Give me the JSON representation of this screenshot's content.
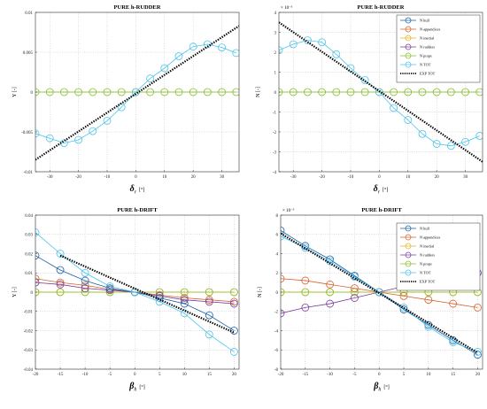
{
  "chart_data": [
    {
      "type": "line",
      "title": "PURE h-RUDDER",
      "ylabel": "Y [-]",
      "xlabel_symbol": "δ",
      "xlabel_sub": "r",
      "xlabel_unit": "[°]",
      "xlim": [
        -35,
        36
      ],
      "ylim": [
        -0.01,
        0.01
      ],
      "xticks": [
        -30,
        -20,
        -10,
        0,
        10,
        20,
        30
      ],
      "xtick_labels": [
        "-30",
        "-20",
        "-10",
        "0",
        "10",
        "20",
        "30"
      ],
      "yticks": [
        -0.01,
        -0.005,
        0,
        0.005,
        0.01
      ],
      "ytick_labels": [
        "-0.01",
        "-0.005",
        "0",
        "0.005",
        "0.01"
      ],
      "exponent": "",
      "grid": true,
      "legend": [],
      "series": [
        {
          "color": "#c0c0c0",
          "marker": "none",
          "style": "solid",
          "x": [
            -35,
            36
          ],
          "y": [
            0,
            0
          ]
        },
        {
          "color": "#88bf2c",
          "marker": "circle",
          "style": "solid",
          "x": [
            -35,
            -30,
            -25,
            -20,
            -15,
            -10,
            -5,
            0,
            5,
            10,
            15,
            20,
            25,
            30,
            35
          ],
          "y": [
            0,
            0,
            0,
            0,
            0,
            0,
            0,
            0,
            0,
            0,
            0,
            0,
            0,
            0,
            0
          ]
        },
        {
          "color": "#4cc3ea",
          "marker": "circle",
          "style": "solid",
          "x": [
            -35,
            -30,
            -25,
            -20,
            -15,
            -10,
            -5,
            0,
            5,
            10,
            15,
            20,
            25,
            30,
            35
          ],
          "y": [
            -0.0052,
            -0.0058,
            -0.0064,
            -0.006,
            -0.0049,
            -0.0036,
            -0.0019,
            0,
            0.0017,
            0.003,
            0.0045,
            0.0057,
            0.006,
            0.0056,
            0.0049
          ]
        },
        {
          "color": "#000000",
          "marker": "none",
          "style": "dotted",
          "x": [
            -35,
            36
          ],
          "y": [
            -0.0085,
            0.0083
          ]
        }
      ]
    },
    {
      "type": "line",
      "title": "PURE h-RUDDER",
      "ylabel": "N [-]",
      "xlabel_symbol": "δ",
      "xlabel_sub": "r",
      "xlabel_unit": "[°]",
      "xlim": [
        -35,
        36
      ],
      "ylim": [
        -4,
        4
      ],
      "xticks": [
        -30,
        -20,
        -10,
        0,
        10,
        20,
        30
      ],
      "xtick_labels": [
        "-30",
        "-20",
        "-10",
        "0",
        "10",
        "20",
        "30"
      ],
      "yticks": [
        -4,
        -3,
        -2,
        -1,
        0,
        1,
        2,
        3,
        4
      ],
      "ytick_labels": [
        "-4",
        "-3",
        "-2",
        "-1",
        "0",
        "1",
        "2",
        "3",
        "4"
      ],
      "exponent": "× 10⁻³",
      "grid": true,
      "legend": [
        {
          "label": "N hull",
          "color": "#1a5fa8",
          "marker": "circle",
          "style": "solid"
        },
        {
          "label": "N appendices",
          "color": "#d95f2a",
          "marker": "circle",
          "style": "solid"
        },
        {
          "label": "N inertial",
          "color": "#e8b21a",
          "marker": "circle",
          "style": "solid"
        },
        {
          "label": "N rudders",
          "color": "#7a3a9a",
          "marker": "circle",
          "style": "solid"
        },
        {
          "label": "N props",
          "color": "#88bf2c",
          "marker": "circle",
          "style": "solid"
        },
        {
          "label": "N TOT",
          "color": "#4cc3ea",
          "marker": "circle",
          "style": "solid"
        },
        {
          "label": "EXP TOT",
          "color": "#000000",
          "marker": "none",
          "style": "dotted"
        }
      ],
      "series": [
        {
          "color": "#c0c0c0",
          "marker": "none",
          "style": "solid",
          "x": [
            -35,
            36
          ],
          "y": [
            0,
            0
          ]
        },
        {
          "color": "#88bf2c",
          "marker": "circle",
          "style": "solid",
          "x": [
            -35,
            -30,
            -25,
            -20,
            -15,
            -10,
            -5,
            0,
            5,
            10,
            15,
            20,
            25,
            30,
            35
          ],
          "y": [
            0,
            0,
            0,
            0,
            0,
            0,
            0,
            0,
            0,
            0,
            0,
            0,
            0,
            0,
            0
          ]
        },
        {
          "color": "#4cc3ea",
          "marker": "circle",
          "style": "solid",
          "x": [
            -35,
            -30,
            -25,
            -20,
            -15,
            -10,
            -5,
            0,
            5,
            10,
            15,
            20,
            25,
            30,
            35
          ],
          "y": [
            2.1,
            2.4,
            2.6,
            2.5,
            1.9,
            1.2,
            0.6,
            0,
            -0.8,
            -1.4,
            -2.1,
            -2.6,
            -2.7,
            -2.5,
            -2.2
          ]
        },
        {
          "color": "#000000",
          "marker": "none",
          "style": "dotted",
          "x": [
            -35,
            36
          ],
          "y": [
            3.5,
            -3.5
          ]
        }
      ]
    },
    {
      "type": "line",
      "title": "PURE h-DRIFT",
      "ylabel": "Y [-]",
      "xlabel_symbol": "β",
      "xlabel_sub": "h",
      "xlabel_unit": "[°]",
      "xlim": [
        -20,
        21
      ],
      "ylim": [
        -0.04,
        0.04
      ],
      "xticks": [
        -20,
        -15,
        -10,
        -5,
        0,
        5,
        10,
        15,
        20
      ],
      "xtick_labels": [
        "-20",
        "-15",
        "-10",
        "-5",
        "0",
        "5",
        "10",
        "15",
        "20"
      ],
      "yticks": [
        -0.04,
        -0.03,
        -0.02,
        -0.01,
        0,
        0.01,
        0.02,
        0.03,
        0.04
      ],
      "ytick_labels": [
        "-0.04",
        "-0.03",
        "-0.02",
        "-0.01",
        "0",
        "0.01",
        "0.02",
        "0.03",
        "0.04"
      ],
      "exponent": "",
      "grid": true,
      "legend": [],
      "series": [
        {
          "color": "#e8b21a",
          "marker": "circle",
          "style": "solid",
          "x": [
            -20,
            -15,
            -10,
            -5,
            0,
            5,
            10,
            15,
            20
          ],
          "y": [
            0,
            0,
            0,
            0,
            0,
            0,
            0,
            0,
            0
          ]
        },
        {
          "color": "#88bf2c",
          "marker": "circle",
          "style": "solid",
          "x": [
            -20,
            -15,
            -10,
            -5,
            0,
            5,
            10,
            15,
            20
          ],
          "y": [
            0,
            0,
            0,
            0,
            0,
            0,
            0,
            0,
            0
          ]
        },
        {
          "color": "#d95f2a",
          "marker": "circle",
          "style": "solid",
          "x": [
            -20,
            -15,
            -10,
            -5,
            0,
            5,
            10,
            15,
            20
          ],
          "y": [
            0.007,
            0.005,
            0.0035,
            0.0015,
            0,
            -0.0015,
            -0.003,
            -0.004,
            -0.005
          ]
        },
        {
          "color": "#7a3a9a",
          "marker": "circle",
          "style": "solid",
          "x": [
            -20,
            -15,
            -10,
            -5,
            0,
            5,
            10,
            15,
            20
          ],
          "y": [
            0.005,
            0.004,
            0.002,
            0.001,
            0,
            -0.002,
            -0.004,
            -0.005,
            -0.006
          ]
        },
        {
          "color": "#1a5fa8",
          "marker": "circle",
          "style": "solid",
          "x": [
            -20,
            -15,
            -10,
            -5,
            0,
            5,
            10,
            15,
            20
          ],
          "y": [
            0.019,
            0.0115,
            0.006,
            0.002,
            0,
            -0.003,
            -0.006,
            -0.012,
            -0.02
          ]
        },
        {
          "color": "#4cc3ea",
          "marker": "circle",
          "style": "solid",
          "x": [
            -20,
            -15,
            -10,
            -5,
            0,
            5,
            10,
            15,
            20
          ],
          "y": [
            0.031,
            0.02,
            0.01,
            0.003,
            0,
            -0.005,
            -0.011,
            -0.022,
            -0.031
          ]
        },
        {
          "color": "#000000",
          "marker": "none",
          "style": "dotted",
          "x": [
            -15,
            20
          ],
          "y": [
            0.019,
            -0.021
          ]
        }
      ]
    },
    {
      "type": "line",
      "title": "PURE h-DRIFT",
      "ylabel": "N [-]",
      "xlabel_symbol": "β",
      "xlabel_sub": "h",
      "xlabel_unit": "[°]",
      "xlim": [
        -20,
        21
      ],
      "ylim": [
        -8,
        8
      ],
      "xticks": [
        -20,
        -15,
        -10,
        -5,
        0,
        5,
        10,
        15,
        20
      ],
      "xtick_labels": [
        "-20",
        "-15",
        "-10",
        "-5",
        "0",
        "5",
        "10",
        "15",
        "20"
      ],
      "yticks": [
        -8,
        -6,
        -4,
        -2,
        0,
        2,
        4,
        6,
        8
      ],
      "ytick_labels": [
        "-8",
        "-6",
        "-4",
        "-2",
        "0",
        "2",
        "4",
        "6",
        "8"
      ],
      "exponent": "× 10⁻³",
      "grid": true,
      "legend": [
        {
          "label": "N hull",
          "color": "#1a5fa8",
          "marker": "circle",
          "style": "solid"
        },
        {
          "label": "N appendices",
          "color": "#d95f2a",
          "marker": "circle",
          "style": "solid"
        },
        {
          "label": "N inertial",
          "color": "#e8b21a",
          "marker": "circle",
          "style": "solid"
        },
        {
          "label": "N rudders",
          "color": "#7a3a9a",
          "marker": "circle",
          "style": "solid"
        },
        {
          "label": "N props",
          "color": "#88bf2c",
          "marker": "circle",
          "style": "solid"
        },
        {
          "label": "N TOT",
          "color": "#4cc3ea",
          "marker": "circle",
          "style": "solid"
        },
        {
          "label": "EXP TOT",
          "color": "#000000",
          "marker": "none",
          "style": "dotted"
        }
      ],
      "series": [
        {
          "color": "#e8b21a",
          "marker": "circle",
          "style": "solid",
          "x": [
            -20,
            -15,
            -10,
            -5,
            0,
            5,
            10,
            15,
            20
          ],
          "y": [
            0,
            0,
            0,
            0,
            0,
            0,
            0,
            0,
            0
          ]
        },
        {
          "color": "#88bf2c",
          "marker": "circle",
          "style": "solid",
          "x": [
            -20,
            -15,
            -10,
            -5,
            0,
            5,
            10,
            15,
            20
          ],
          "y": [
            0,
            0,
            0,
            0,
            0,
            0,
            0,
            0,
            0
          ]
        },
        {
          "color": "#d95f2a",
          "marker": "circle",
          "style": "solid",
          "x": [
            -20,
            -15,
            -10,
            -5,
            0,
            5,
            10,
            15,
            20
          ],
          "y": [
            1.4,
            1.2,
            0.8,
            0.4,
            0,
            -0.4,
            -0.8,
            -1.2,
            -1.6
          ]
        },
        {
          "color": "#7a3a9a",
          "marker": "circle",
          "style": "solid",
          "x": [
            -20,
            -15,
            -10,
            -5,
            0,
            5,
            10,
            15,
            20
          ],
          "y": [
            -2.2,
            -1.6,
            -1.2,
            -0.6,
            0,
            0.6,
            1.0,
            1.5,
            2.0
          ]
        },
        {
          "color": "#1a5fa8",
          "marker": "circle",
          "style": "solid",
          "x": [
            -20,
            -15,
            -10,
            -5,
            0,
            5,
            10,
            15,
            20
          ],
          "y": [
            6.4,
            4.8,
            3.4,
            1.7,
            0,
            -1.8,
            -3.4,
            -5.0,
            -6.5
          ]
        },
        {
          "color": "#4cc3ea",
          "marker": "circle",
          "style": "solid",
          "x": [
            -20,
            -15,
            -10,
            -5,
            0,
            5,
            10,
            15,
            20
          ],
          "y": [
            5.8,
            4.6,
            3.2,
            1.6,
            0,
            -1.6,
            -3.6,
            -5.2,
            -6.2
          ]
        },
        {
          "color": "#000000",
          "marker": "none",
          "style": "dotted",
          "x": [
            -20,
            20
          ],
          "y": [
            6.1,
            -6.3
          ]
        }
      ]
    }
  ]
}
